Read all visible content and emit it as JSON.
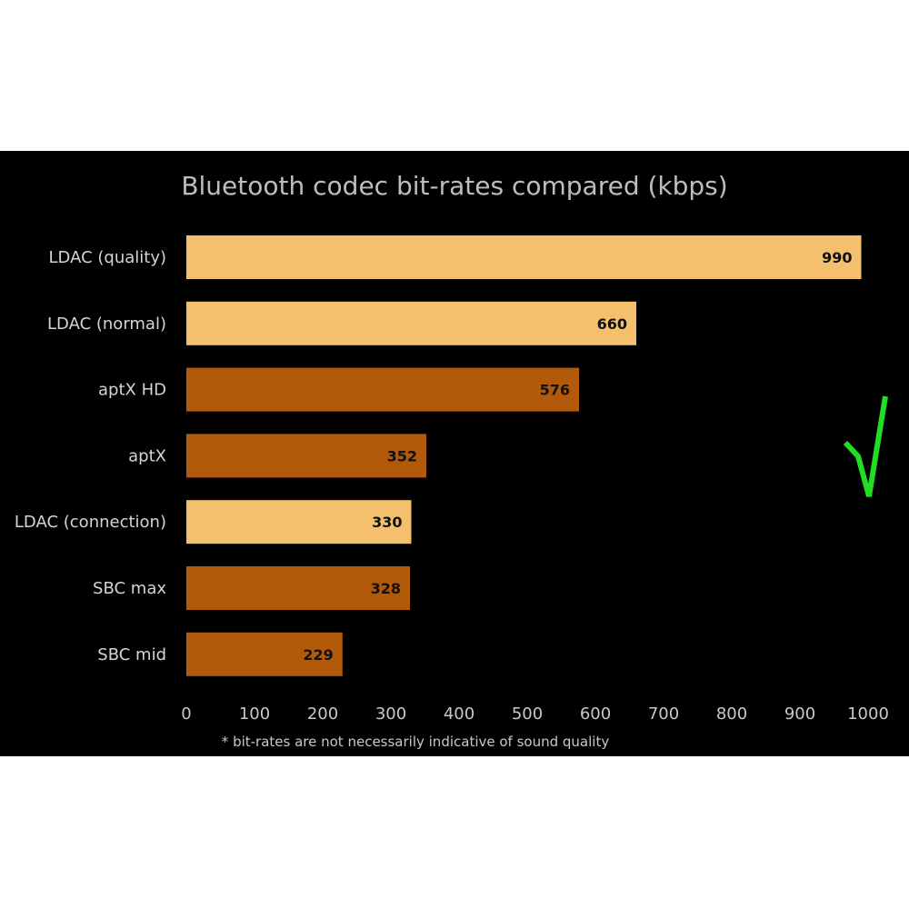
{
  "chart_data": {
    "type": "bar",
    "orientation": "horizontal",
    "title": "Bluetooth codec bit-rates compared (kbps)",
    "categories": [
      "LDAC (quality)",
      "LDAC (normal)",
      "aptX HD",
      "aptX",
      "LDAC (connection)",
      "SBC max",
      "SBC mid"
    ],
    "values": [
      990,
      660,
      576,
      352,
      330,
      328,
      229
    ],
    "value_labels": [
      "990",
      "660",
      "576",
      "352",
      "330",
      "328",
      "229"
    ],
    "bar_colors": [
      "#f5c06e",
      "#f5c06e",
      "#b35a0a",
      "#b35a0a",
      "#f5c06e",
      "#b35a0a",
      "#b35a0a"
    ],
    "xlim": [
      0,
      1000
    ],
    "xticks": [
      0,
      100,
      200,
      300,
      400,
      500,
      600,
      700,
      800,
      900,
      1000
    ],
    "xtick_labels": [
      "0",
      "100",
      "200",
      "300",
      "400",
      "500",
      "600",
      "700",
      "800",
      "900",
      "1000"
    ],
    "grid": false,
    "legend": "none",
    "footnote": "* bit-rates are not necessarily indicative of sound quality",
    "annotation_icon": "checkmark-icon",
    "annotation_color": "#22dd22",
    "background": "#000000"
  }
}
